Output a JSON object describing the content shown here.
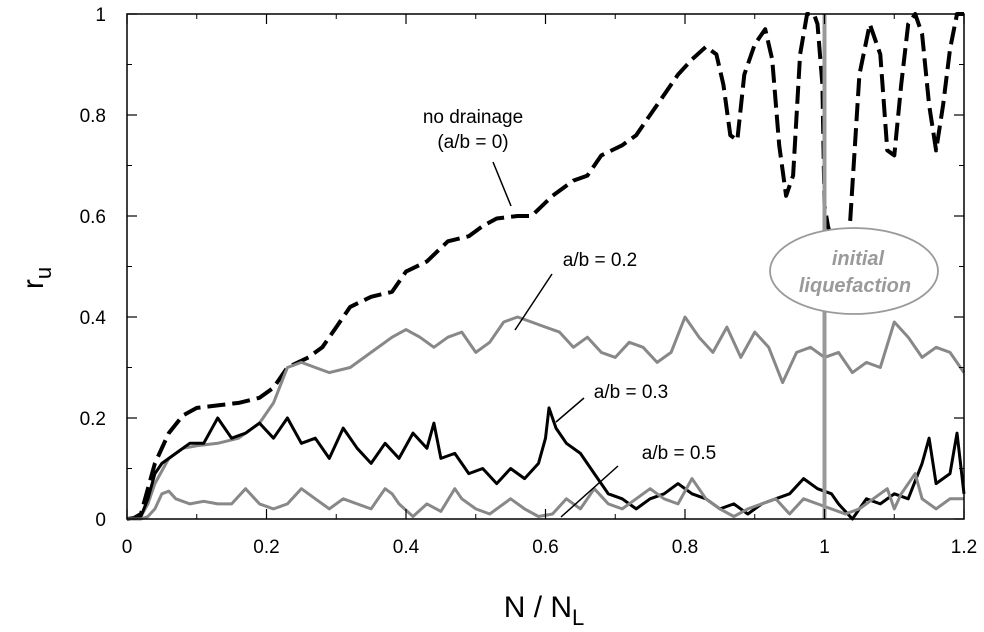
{
  "chart_data": {
    "type": "line",
    "xlabel": "N / N",
    "xlabel_sub": "L",
    "ylabel": "r",
    "ylabel_sub": "u",
    "xlim": [
      0,
      1.2
    ],
    "ylim": [
      0,
      1
    ],
    "x_ticks": [
      "0",
      "0.2",
      "0.4",
      "0.6",
      "0.8",
      "1",
      "1.2"
    ],
    "y_ticks": [
      "0",
      "0.2",
      "0.4",
      "0.6",
      "0.8",
      "1"
    ],
    "grid": false,
    "series": [
      {
        "label": "no drainage (a/b = 0)",
        "style": "dashed",
        "color": "#000000",
        "points": [
          [
            0,
            0
          ],
          [
            0.01,
            0.002
          ],
          [
            0.02,
            0.01
          ],
          [
            0.03,
            0.06
          ],
          [
            0.04,
            0.11
          ],
          [
            0.06,
            0.17
          ],
          [
            0.08,
            0.205
          ],
          [
            0.1,
            0.22
          ],
          [
            0.13,
            0.225
          ],
          [
            0.16,
            0.23
          ],
          [
            0.19,
            0.24
          ],
          [
            0.21,
            0.26
          ],
          [
            0.23,
            0.3
          ],
          [
            0.26,
            0.32
          ],
          [
            0.28,
            0.34
          ],
          [
            0.3,
            0.38
          ],
          [
            0.32,
            0.42
          ],
          [
            0.35,
            0.44
          ],
          [
            0.38,
            0.45
          ],
          [
            0.4,
            0.49
          ],
          [
            0.43,
            0.51
          ],
          [
            0.46,
            0.55
          ],
          [
            0.49,
            0.56
          ],
          [
            0.51,
            0.58
          ],
          [
            0.53,
            0.595
          ],
          [
            0.56,
            0.6
          ],
          [
            0.58,
            0.6
          ],
          [
            0.61,
            0.64
          ],
          [
            0.64,
            0.67
          ],
          [
            0.66,
            0.68
          ],
          [
            0.68,
            0.72
          ],
          [
            0.71,
            0.74
          ],
          [
            0.73,
            0.76
          ],
          [
            0.75,
            0.8
          ],
          [
            0.77,
            0.84
          ],
          [
            0.79,
            0.88
          ],
          [
            0.81,
            0.91
          ],
          [
            0.83,
            0.935
          ],
          [
            0.845,
            0.92
          ],
          [
            0.855,
            0.86
          ],
          [
            0.865,
            0.76
          ],
          [
            0.875,
            0.75
          ],
          [
            0.885,
            0.88
          ],
          [
            0.9,
            0.94
          ],
          [
            0.915,
            0.97
          ],
          [
            0.925,
            0.91
          ],
          [
            0.935,
            0.74
          ],
          [
            0.945,
            0.64
          ],
          [
            0.955,
            0.68
          ],
          [
            0.965,
            0.92
          ],
          [
            0.975,
            1.0
          ],
          [
            0.985,
            1.0
          ],
          [
            0.99,
            0.98
          ],
          [
            0.997,
            0.86
          ],
          [
            1.0,
            0.62
          ],
          [
            1.005,
            0.58
          ],
          [
            1.02,
            0.5
          ],
          [
            1.035,
            0.55
          ],
          [
            1.05,
            0.88
          ],
          [
            1.065,
            0.98
          ],
          [
            1.08,
            0.92
          ],
          [
            1.09,
            0.73
          ],
          [
            1.1,
            0.72
          ],
          [
            1.11,
            0.86
          ],
          [
            1.12,
            0.98
          ],
          [
            1.13,
            1.0
          ],
          [
            1.14,
            0.96
          ],
          [
            1.15,
            0.82
          ],
          [
            1.16,
            0.73
          ],
          [
            1.17,
            0.82
          ],
          [
            1.18,
            0.93
          ],
          [
            1.19,
            1.0
          ],
          [
            1.2,
            1.0
          ]
        ]
      },
      {
        "label": "a/b = 0.2",
        "style": "solid",
        "color": "#888888",
        "points": [
          [
            0,
            0
          ],
          [
            0.02,
            0.005
          ],
          [
            0.03,
            0.03
          ],
          [
            0.04,
            0.07
          ],
          [
            0.06,
            0.12
          ],
          [
            0.08,
            0.14
          ],
          [
            0.1,
            0.145
          ],
          [
            0.13,
            0.15
          ],
          [
            0.16,
            0.16
          ],
          [
            0.19,
            0.19
          ],
          [
            0.21,
            0.23
          ],
          [
            0.23,
            0.3
          ],
          [
            0.25,
            0.31
          ],
          [
            0.27,
            0.3
          ],
          [
            0.29,
            0.29
          ],
          [
            0.32,
            0.3
          ],
          [
            0.35,
            0.33
          ],
          [
            0.38,
            0.36
          ],
          [
            0.4,
            0.375
          ],
          [
            0.42,
            0.36
          ],
          [
            0.44,
            0.34
          ],
          [
            0.46,
            0.36
          ],
          [
            0.48,
            0.37
          ],
          [
            0.5,
            0.33
          ],
          [
            0.52,
            0.35
          ],
          [
            0.54,
            0.39
          ],
          [
            0.56,
            0.4
          ],
          [
            0.58,
            0.39
          ],
          [
            0.6,
            0.38
          ],
          [
            0.62,
            0.37
          ],
          [
            0.64,
            0.34
          ],
          [
            0.66,
            0.36
          ],
          [
            0.68,
            0.33
          ],
          [
            0.7,
            0.32
          ],
          [
            0.72,
            0.35
          ],
          [
            0.74,
            0.34
          ],
          [
            0.76,
            0.31
          ],
          [
            0.78,
            0.33
          ],
          [
            0.8,
            0.4
          ],
          [
            0.82,
            0.36
          ],
          [
            0.84,
            0.33
          ],
          [
            0.86,
            0.38
          ],
          [
            0.88,
            0.32
          ],
          [
            0.9,
            0.37
          ],
          [
            0.92,
            0.34
          ],
          [
            0.94,
            0.27
          ],
          [
            0.96,
            0.33
          ],
          [
            0.98,
            0.34
          ],
          [
            1.0,
            0.32
          ],
          [
            1.02,
            0.33
          ],
          [
            1.04,
            0.29
          ],
          [
            1.06,
            0.31
          ],
          [
            1.08,
            0.3
          ],
          [
            1.1,
            0.39
          ],
          [
            1.12,
            0.36
          ],
          [
            1.14,
            0.32
          ],
          [
            1.16,
            0.34
          ],
          [
            1.18,
            0.33
          ],
          [
            1.2,
            0.29
          ]
        ]
      },
      {
        "label": "a/b = 0.3",
        "style": "solid",
        "color": "#000000",
        "points": [
          [
            0,
            0
          ],
          [
            0.02,
            0.005
          ],
          [
            0.03,
            0.04
          ],
          [
            0.04,
            0.09
          ],
          [
            0.05,
            0.11
          ],
          [
            0.07,
            0.13
          ],
          [
            0.09,
            0.15
          ],
          [
            0.11,
            0.15
          ],
          [
            0.13,
            0.2
          ],
          [
            0.15,
            0.16
          ],
          [
            0.17,
            0.17
          ],
          [
            0.19,
            0.19
          ],
          [
            0.21,
            0.16
          ],
          [
            0.23,
            0.2
          ],
          [
            0.25,
            0.15
          ],
          [
            0.27,
            0.16
          ],
          [
            0.29,
            0.12
          ],
          [
            0.31,
            0.18
          ],
          [
            0.33,
            0.14
          ],
          [
            0.35,
            0.11
          ],
          [
            0.37,
            0.15
          ],
          [
            0.39,
            0.12
          ],
          [
            0.41,
            0.17
          ],
          [
            0.43,
            0.14
          ],
          [
            0.44,
            0.19
          ],
          [
            0.45,
            0.12
          ],
          [
            0.47,
            0.13
          ],
          [
            0.49,
            0.09
          ],
          [
            0.51,
            0.1
          ],
          [
            0.53,
            0.07
          ],
          [
            0.55,
            0.1
          ],
          [
            0.57,
            0.08
          ],
          [
            0.59,
            0.11
          ],
          [
            0.6,
            0.16
          ],
          [
            0.605,
            0.22
          ],
          [
            0.615,
            0.18
          ],
          [
            0.63,
            0.15
          ],
          [
            0.65,
            0.13
          ],
          [
            0.67,
            0.09
          ],
          [
            0.69,
            0.05
          ],
          [
            0.71,
            0.04
          ],
          [
            0.73,
            0.02
          ],
          [
            0.75,
            0.04
          ],
          [
            0.77,
            0.05
          ],
          [
            0.79,
            0.07
          ],
          [
            0.81,
            0.05
          ],
          [
            0.83,
            0.04
          ],
          [
            0.85,
            0.02
          ],
          [
            0.87,
            0.03
          ],
          [
            0.89,
            0.01
          ],
          [
            0.91,
            0.03
          ],
          [
            0.93,
            0.04
          ],
          [
            0.95,
            0.05
          ],
          [
            0.97,
            0.08
          ],
          [
            0.99,
            0.06
          ],
          [
            1.01,
            0.05
          ],
          [
            1.02,
            0.03
          ],
          [
            1.04,
            0.0
          ],
          [
            1.06,
            0.04
          ],
          [
            1.08,
            0.03
          ],
          [
            1.1,
            0.05
          ],
          [
            1.12,
            0.04
          ],
          [
            1.14,
            0.11
          ],
          [
            1.15,
            0.16
          ],
          [
            1.16,
            0.07
          ],
          [
            1.18,
            0.09
          ],
          [
            1.19,
            0.17
          ],
          [
            1.2,
            0.05
          ]
        ]
      },
      {
        "label": "a/b = 0.5",
        "style": "solid",
        "color": "#888888",
        "points": [
          [
            0,
            0
          ],
          [
            0.02,
            0.0
          ],
          [
            0.03,
            0.005
          ],
          [
            0.04,
            0.02
          ],
          [
            0.05,
            0.05
          ],
          [
            0.06,
            0.055
          ],
          [
            0.07,
            0.04
          ],
          [
            0.09,
            0.03
          ],
          [
            0.11,
            0.035
          ],
          [
            0.13,
            0.03
          ],
          [
            0.15,
            0.03
          ],
          [
            0.17,
            0.06
          ],
          [
            0.19,
            0.03
          ],
          [
            0.21,
            0.02
          ],
          [
            0.23,
            0.03
          ],
          [
            0.25,
            0.06
          ],
          [
            0.27,
            0.04
          ],
          [
            0.29,
            0.02
          ],
          [
            0.31,
            0.04
          ],
          [
            0.33,
            0.03
          ],
          [
            0.35,
            0.02
          ],
          [
            0.37,
            0.06
          ],
          [
            0.38,
            0.05
          ],
          [
            0.39,
            0.03
          ],
          [
            0.41,
            0.005
          ],
          [
            0.43,
            0.03
          ],
          [
            0.45,
            0.015
          ],
          [
            0.47,
            0.06
          ],
          [
            0.48,
            0.04
          ],
          [
            0.5,
            0.02
          ],
          [
            0.52,
            0.01
          ],
          [
            0.55,
            0.04
          ],
          [
            0.57,
            0.02
          ],
          [
            0.59,
            0.005
          ],
          [
            0.61,
            0.01
          ],
          [
            0.63,
            0.04
          ],
          [
            0.65,
            0.02
          ],
          [
            0.67,
            0.06
          ],
          [
            0.69,
            0.03
          ],
          [
            0.71,
            0.02
          ],
          [
            0.73,
            0.04
          ],
          [
            0.75,
            0.06
          ],
          [
            0.77,
            0.04
          ],
          [
            0.79,
            0.03
          ],
          [
            0.81,
            0.08
          ],
          [
            0.83,
            0.04
          ],
          [
            0.85,
            0.02
          ],
          [
            0.87,
            0.005
          ],
          [
            0.89,
            0.02
          ],
          [
            0.91,
            0.03
          ],
          [
            0.93,
            0.04
          ],
          [
            0.95,
            0.01
          ],
          [
            0.97,
            0.04
          ],
          [
            0.99,
            0.03
          ],
          [
            1.01,
            0.02
          ],
          [
            1.03,
            0.01
          ],
          [
            1.05,
            0.02
          ],
          [
            1.07,
            0.04
          ],
          [
            1.09,
            0.06
          ],
          [
            1.1,
            0.02
          ],
          [
            1.11,
            0.05
          ],
          [
            1.13,
            0.09
          ],
          [
            1.14,
            0.04
          ],
          [
            1.16,
            0.02
          ],
          [
            1.18,
            0.04
          ],
          [
            1.2,
            0.04
          ]
        ]
      }
    ],
    "reference_line": {
      "x": 1.0,
      "color": "#999999"
    },
    "annotations": {
      "no_drainage_line1": "no drainage",
      "no_drainage_line2": "(a/b = 0)",
      "ab02": "a/b = 0.2",
      "ab03": "a/b = 0.3",
      "ab05": "a/b = 0.5",
      "liquefaction_line1": "initial",
      "liquefaction_line2": "liquefaction"
    }
  }
}
